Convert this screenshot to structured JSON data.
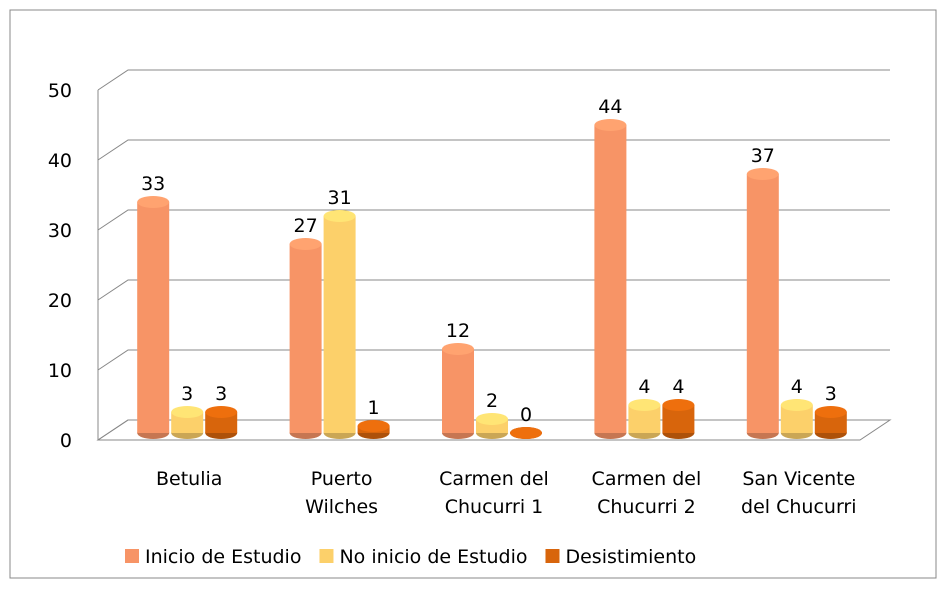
{
  "chart_data": {
    "type": "bar3d",
    "categories": [
      [
        "Betulia"
      ],
      [
        "Puerto",
        "Wilches"
      ],
      [
        "Carmen del",
        "Chucurri 1"
      ],
      [
        "Carmen del",
        "Chucurri 2"
      ],
      [
        "San Vicente",
        "del Chucurri"
      ]
    ],
    "series": [
      {
        "name": "Inicio de Estudio",
        "color": "#f79466",
        "values": [
          33,
          27,
          12,
          44,
          37
        ]
      },
      {
        "name": "No inicio de Estudio",
        "color": "#fcd06a",
        "values": [
          3,
          31,
          2,
          4,
          4
        ]
      },
      {
        "name": "Desistimiento",
        "color": "#d8650c",
        "values": [
          3,
          1,
          0,
          4,
          3
        ]
      }
    ],
    "ylim": [
      0,
      50
    ],
    "yticks": [
      0,
      10,
      20,
      30,
      40,
      50
    ],
    "grid": true,
    "legend": "bottom"
  }
}
